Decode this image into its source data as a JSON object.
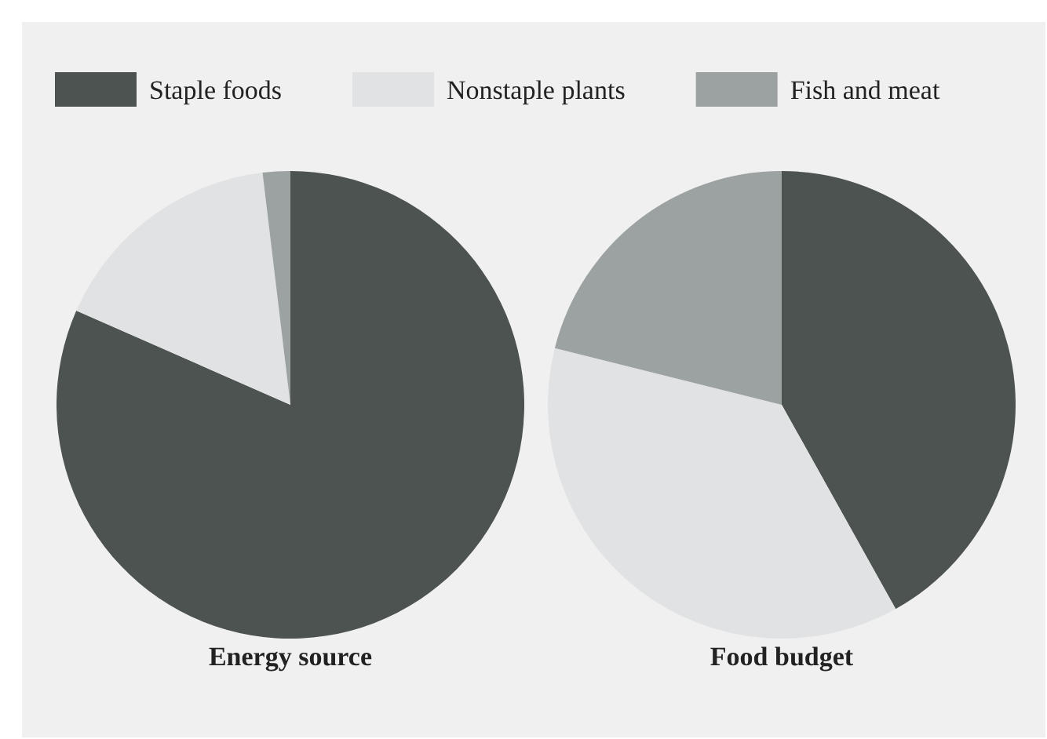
{
  "chart_data": [
    {
      "type": "pie",
      "title": "Energy source",
      "categories": [
        "Staple foods",
        "Nonstaple plants",
        "Fish and meat"
      ],
      "values": [
        81.6,
        16.5,
        1.9
      ],
      "colors": [
        "#4d5350",
        "#e1e2e3",
        "#9ca2a1"
      ],
      "legend": "top"
    },
    {
      "type": "pie",
      "title": "Food budget",
      "categories": [
        null,
        null,
        null
      ],
      "values": [
        41.9,
        37,
        21.1
      ],
      "colors": [
        "#4d5350",
        "#e1e2e3",
        "#9ca2a1"
      ]
    }
  ]
}
